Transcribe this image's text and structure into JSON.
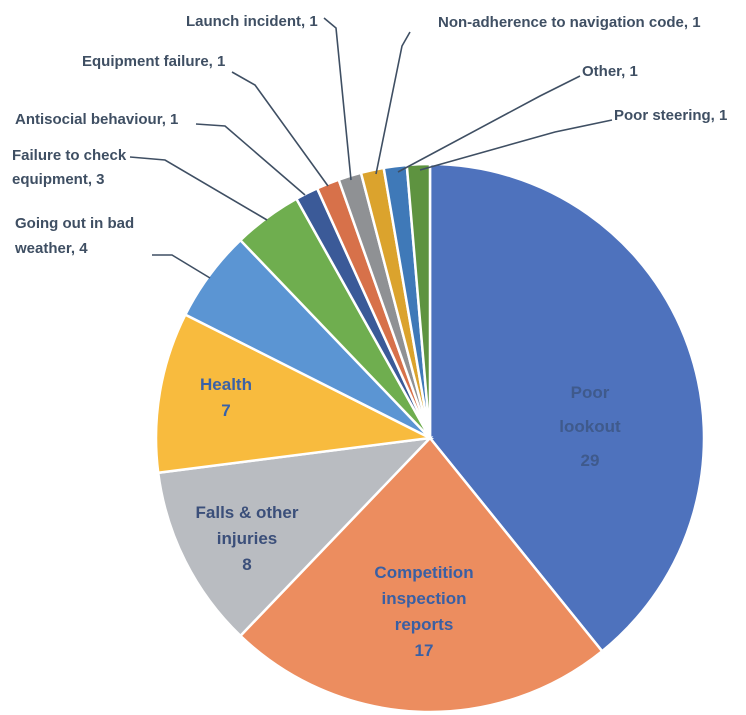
{
  "chart_data": {
    "type": "pie",
    "title": "",
    "start_angle_deg": 0,
    "direction": "clockwise",
    "colors": {
      "poor_lookout": "#4e72bd",
      "competition_inspection_reports": "#ec8d5f",
      "falls_other_injuries": "#b9bcc1",
      "health": "#f8bb3e",
      "going_out_bad_weather": "#5b95d3",
      "failure_check_equipment": "#6fae4f",
      "small_1": "#3b5a98",
      "small_2": "#d7714a",
      "small_3": "#8f9194",
      "small_4": "#dba32d",
      "small_5": "#3f79b8",
      "small_6": "#5e9340",
      "label_external": "#3f4f63",
      "label_big": "#3f5a8c",
      "label_competition": "#3a5fa3",
      "label_falls": "#3b4f7a",
      "label_health": "#3a62a8"
    },
    "slices": [
      {
        "key": "poor_lookout",
        "label": "Poor lookout",
        "value": 29,
        "lines": [
          "Poor",
          "lookout",
          "29"
        ],
        "label_style": "internal",
        "label_color": "label_big"
      },
      {
        "key": "competition_inspection_reports",
        "label": "Competition inspection reports",
        "value": 17,
        "lines": [
          "Competition",
          "inspection",
          "reports",
          "17"
        ],
        "label_style": "internal",
        "label_color": "label_competition"
      },
      {
        "key": "falls_other_injuries",
        "label": "Falls & other injuries",
        "value": 8,
        "lines": [
          "Falls & other",
          "injuries",
          "8"
        ],
        "label_style": "internal",
        "label_color": "label_falls"
      },
      {
        "key": "health",
        "label": "Health",
        "value": 7,
        "lines": [
          "Health",
          "7"
        ],
        "label_style": "internal",
        "label_color": "label_health"
      },
      {
        "key": "going_out_bad_weather",
        "label": "Going out in bad weather",
        "value": 4,
        "lines": [
          "Going out in bad",
          "weather, 4"
        ],
        "label_style": "external"
      },
      {
        "key": "failure_check_equipment",
        "label": "Failure to check equipment",
        "value": 3,
        "lines": [
          "Failure to check",
          "equipment, 3"
        ],
        "label_style": "external"
      },
      {
        "key": "small_1",
        "label": "Antisocial behaviour",
        "value": 1,
        "lines": [
          "Antisocial behaviour, 1"
        ],
        "label_style": "external"
      },
      {
        "key": "small_2",
        "label": "Equipment failure",
        "value": 1,
        "lines": [
          "Equipment failure, 1"
        ],
        "label_style": "external"
      },
      {
        "key": "small_3",
        "label": "Launch incident",
        "value": 1,
        "lines": [
          "Launch incident, 1"
        ],
        "label_style": "external"
      },
      {
        "key": "small_4",
        "label": "Non-adherence to navigation code",
        "value": 1,
        "lines": [
          "Non-adherence to navigation code, 1"
        ],
        "label_style": "external"
      },
      {
        "key": "small_5",
        "label": "Other",
        "value": 1,
        "lines": [
          "Other, 1"
        ],
        "label_style": "external"
      },
      {
        "key": "small_6",
        "label": "Poor steering",
        "value": 1,
        "lines": [
          "Poor steering, 1"
        ],
        "label_style": "external"
      }
    ]
  }
}
